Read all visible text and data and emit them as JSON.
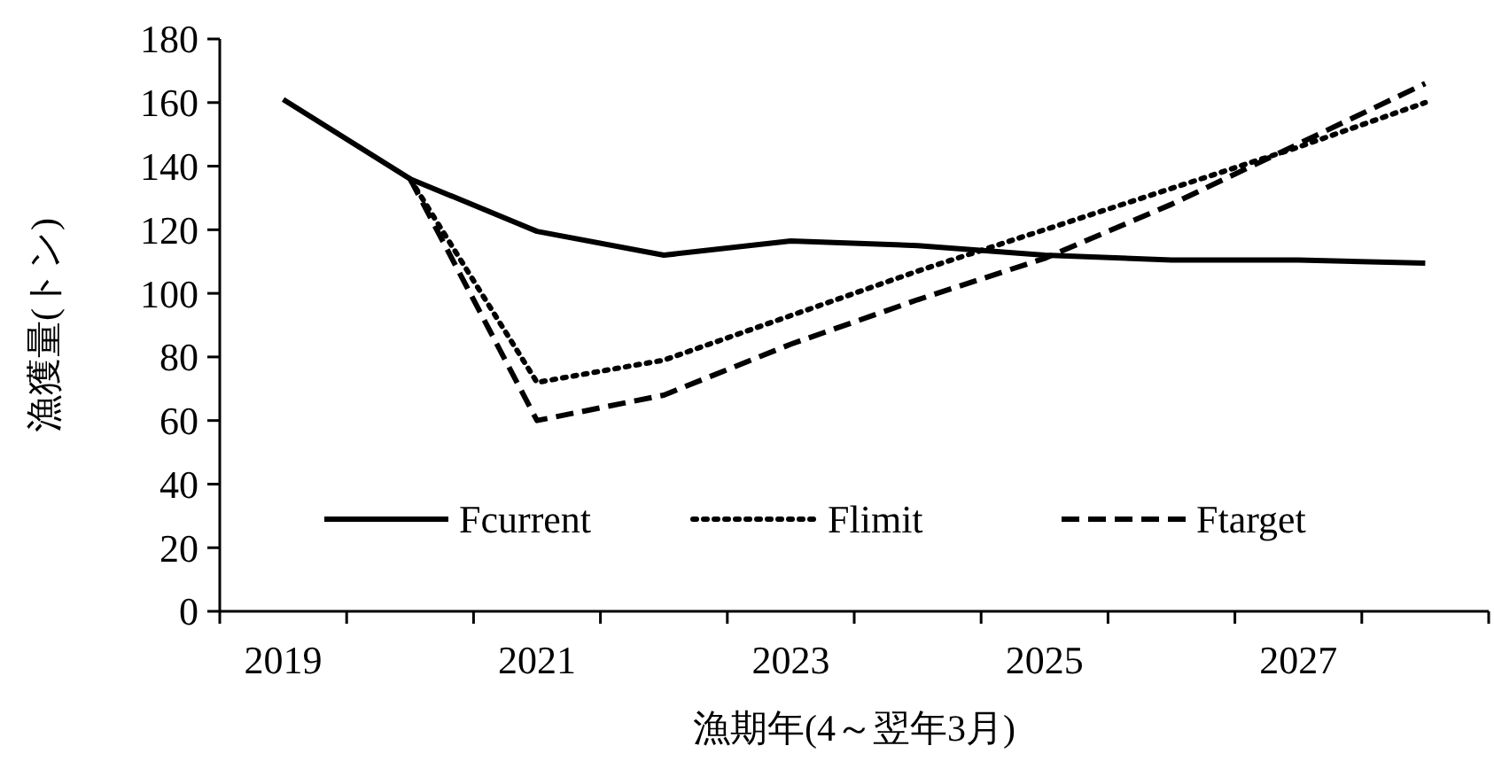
{
  "chart_data": {
    "type": "line",
    "xlabel": "漁期年(4～翌年3月)",
    "ylabel": "漁獲量(トン)",
    "categories": [
      "2019",
      null,
      "2021",
      null,
      "2023",
      null,
      "2025",
      null,
      "2027",
      null
    ],
    "ylim": [
      0,
      180
    ],
    "yticks": [
      0,
      20,
      40,
      60,
      80,
      100,
      120,
      140,
      160,
      180
    ],
    "grid": false,
    "legend": "bottom",
    "marker": "none",
    "series": [
      {
        "name": "Fcurrent",
        "color": "#000000",
        "line_style": "solid",
        "values": [
          161,
          136,
          119.5,
          112,
          116.5,
          115,
          112,
          110.5,
          110.5,
          109.5
        ]
      },
      {
        "name": "Flimit",
        "color": "#000000",
        "line_style": "dotted",
        "values": [
          null,
          136,
          72,
          79,
          93,
          107,
          120,
          133,
          146,
          160
        ]
      },
      {
        "name": "Ftarget",
        "color": "#000000",
        "line_style": "dashed",
        "values": [
          null,
          136,
          60,
          68,
          84,
          98,
          111,
          128,
          147,
          166
        ]
      }
    ]
  }
}
